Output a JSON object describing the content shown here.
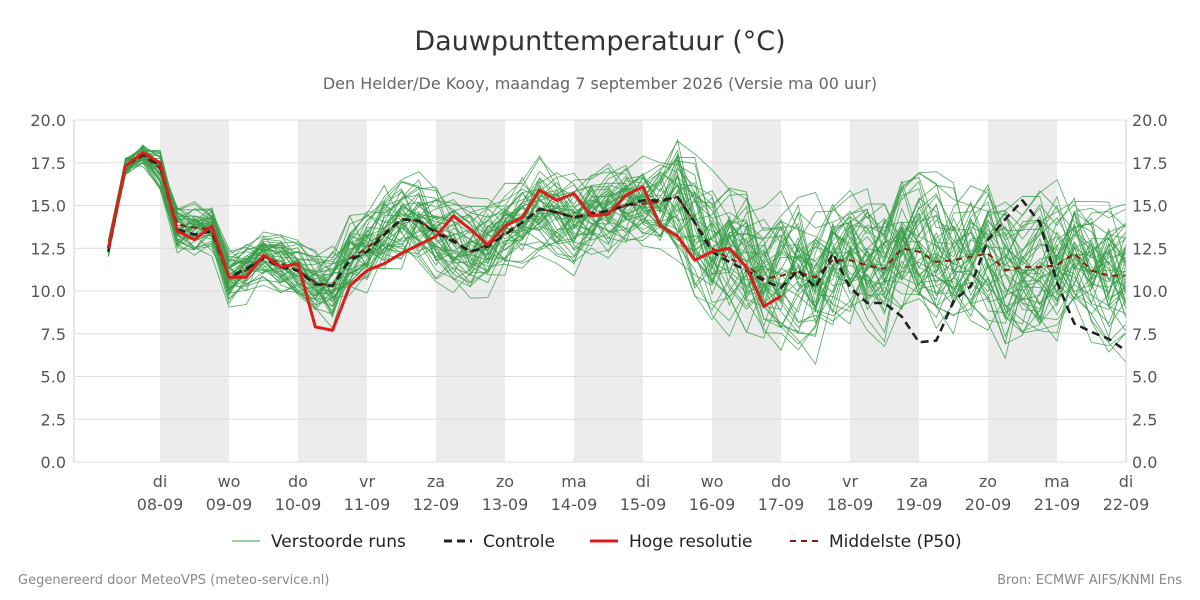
{
  "chart_data": {
    "type": "line",
    "title": "Dauwpunttemperatuur (°C)",
    "subtitle": "Den Helder/De Kooy, maandag  7 september 2026 (Versie ma 00 uur)",
    "ylim": [
      0,
      20
    ],
    "yticks": [
      "0.0",
      "2.5",
      "5.0",
      "7.5",
      "10.0",
      "12.5",
      "15.0",
      "17.5",
      "20.0"
    ],
    "xlim": [
      -0.75,
      14.0
    ],
    "x_ticks": [
      {
        "x": 0,
        "day": "di",
        "date": "08-09"
      },
      {
        "x": 1,
        "day": "wo",
        "date": "09-09"
      },
      {
        "x": 2,
        "day": "do",
        "date": "10-09"
      },
      {
        "x": 3,
        "day": "vr",
        "date": "11-09"
      },
      {
        "x": 4,
        "day": "za",
        "date": "12-09"
      },
      {
        "x": 5,
        "day": "zo",
        "date": "13-09"
      },
      {
        "x": 6,
        "day": "ma",
        "date": "14-09"
      },
      {
        "x": 7,
        "day": "di",
        "date": "15-09"
      },
      {
        "x": 8,
        "day": "wo",
        "date": "16-09"
      },
      {
        "x": 9,
        "day": "do",
        "date": "17-09"
      },
      {
        "x": 10,
        "day": "vr",
        "date": "18-09"
      },
      {
        "x": 11,
        "day": "za",
        "date": "19-09"
      },
      {
        "x": 12,
        "day": "zo",
        "date": "20-09"
      },
      {
        "x": 13,
        "day": "ma",
        "date": "21-09"
      },
      {
        "x": 14,
        "day": "di",
        "date": "22-09"
      }
    ],
    "shaded_days": [
      0,
      2,
      4,
      6,
      8,
      10,
      12
    ],
    "grid": true,
    "legend_position": "bottom",
    "colors": {
      "ensemble": "#3a9e4a",
      "controle": "#222222",
      "hoge_resolutie": "#dd1c1c",
      "p50": "#8b1a10",
      "shade": "#ececec",
      "grid": "#dddddd"
    },
    "legend": [
      "Verstoorde runs",
      "Controle",
      "Hoge resolutie",
      "Middelste (P50)"
    ],
    "series": [
      {
        "name": "Controle",
        "x": [
          -0.75,
          -0.5,
          -0.25,
          0,
          0.25,
          0.5,
          0.75,
          1,
          1.25,
          1.5,
          1.75,
          2,
          2.25,
          2.5,
          2.75,
          3,
          3.25,
          3.5,
          3.75,
          4,
          4.25,
          4.5,
          4.75,
          5,
          5.25,
          5.5,
          5.75,
          6,
          6.25,
          6.5,
          6.75,
          7,
          7.25,
          7.5,
          7.75,
          8,
          8.25,
          8.5,
          8.75,
          9,
          9.25,
          9.5,
          9.75,
          10,
          10.25,
          10.5,
          10.75,
          11,
          11.25,
          11.5,
          11.75,
          12,
          12.25,
          12.5,
          12.75,
          13,
          13.25,
          13.5,
          13.75,
          14
        ],
        "y": [
          12.3,
          17.3,
          18.0,
          17.3,
          13.6,
          13.3,
          13.5,
          10.8,
          11.3,
          11.9,
          11.4,
          11.2,
          10.4,
          10.3,
          11.8,
          12.3,
          13.3,
          14.2,
          14.1,
          13.4,
          12.9,
          12.3,
          12.6,
          13.3,
          14.0,
          14.8,
          14.6,
          14.3,
          14.5,
          14.7,
          15.0,
          15.3,
          15.3,
          15.5,
          14.0,
          12.3,
          11.7,
          11.2,
          10.6,
          10.2,
          11.2,
          10.2,
          12.2,
          10.2,
          9.3,
          9.3,
          8.5,
          7.0,
          7.1,
          9.4,
          10.3,
          13.0,
          14.2,
          15.3,
          14.0,
          10.5,
          8.1,
          7.6,
          7.2,
          6.5
        ]
      },
      {
        "name": "Hoge resolutie",
        "x": [
          -0.75,
          -0.5,
          -0.25,
          0,
          0.25,
          0.5,
          0.75,
          1,
          1.25,
          1.5,
          1.75,
          2,
          2.25,
          2.5,
          2.75,
          3,
          3.25,
          3.5,
          3.75,
          4,
          4.25,
          4.5,
          4.75,
          5,
          5.25,
          5.5,
          5.75,
          6,
          6.25,
          6.5,
          6.75,
          7,
          7.25,
          7.5,
          7.75,
          8,
          8.25,
          8.5,
          8.75,
          9
        ],
        "y": [
          12.5,
          17.3,
          18.1,
          17.5,
          13.5,
          13.0,
          13.8,
          10.8,
          10.8,
          12.1,
          11.4,
          11.6,
          7.9,
          7.7,
          10.3,
          11.2,
          11.6,
          12.2,
          12.7,
          13.2,
          14.4,
          13.6,
          12.7,
          13.8,
          14.3,
          15.9,
          15.3,
          15.7,
          14.4,
          14.5,
          15.6,
          16.1,
          13.8,
          13.2,
          11.8,
          12.3,
          12.5,
          11.4,
          9.1,
          9.7
        ]
      },
      {
        "name": "Middelste (P50)",
        "x": [
          -0.75,
          -0.5,
          -0.25,
          0,
          0.25,
          0.5,
          0.75,
          1,
          1.25,
          1.5,
          1.75,
          2,
          2.25,
          2.5,
          2.75,
          3,
          3.25,
          3.5,
          3.75,
          4,
          4.25,
          4.5,
          4.75,
          5,
          5.25,
          5.5,
          5.75,
          6,
          6.25,
          6.5,
          6.75,
          7,
          7.25,
          7.5,
          7.75,
          8,
          8.25,
          8.5,
          8.75,
          9,
          9.25,
          9.5,
          9.75,
          10,
          10.25,
          10.5,
          10.75,
          11,
          11.25,
          11.5,
          11.75,
          12,
          12.25,
          12.5,
          12.75,
          13,
          13.25,
          13.5,
          13.75,
          14
        ],
        "y": [
          12.5,
          17.3,
          17.9,
          17.2,
          13.9,
          13.7,
          13.6,
          10.8,
          11.2,
          12.0,
          11.6,
          11.2,
          10.5,
          10.3,
          11.9,
          12.5,
          13.4,
          14.2,
          14.1,
          13.5,
          13.0,
          12.3,
          12.7,
          13.4,
          14.0,
          14.8,
          14.6,
          14.3,
          14.6,
          14.6,
          15.0,
          15.1,
          15.2,
          15.5,
          14.0,
          12.5,
          11.9,
          11.5,
          10.7,
          10.9,
          11.1,
          10.8,
          11.8,
          11.8,
          11.5,
          11.3,
          12.5,
          12.3,
          11.7,
          11.8,
          12.0,
          12.2,
          11.2,
          11.4,
          11.4,
          11.5,
          12.2,
          11.2,
          10.9,
          10.9
        ]
      }
    ]
  },
  "footer": {
    "left": "Gegenereerd door MeteoVPS (meteo-service.nl)",
    "right": "Bron: ECMWF AIFS/KNMI Ens"
  }
}
